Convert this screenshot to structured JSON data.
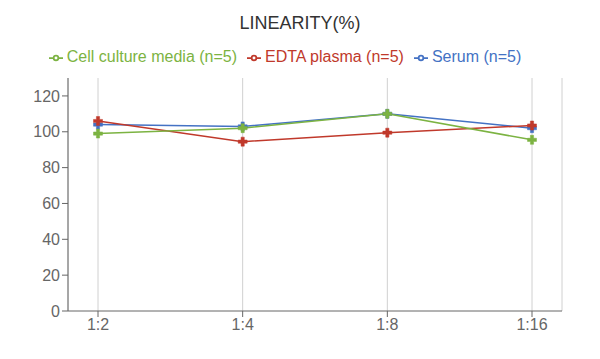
{
  "chart_data": {
    "type": "line",
    "title": "LINEARITY(%)",
    "categories": [
      "1:2",
      "1:4",
      "1:8",
      "1:16"
    ],
    "series": [
      {
        "name": "Serum (n=5)",
        "color": "#4472C4",
        "marker": "plus",
        "values": [
          104,
          103,
          110,
          102
        ]
      },
      {
        "name": "EDTA plasma (n=5)",
        "color": "#C0392B",
        "marker": "plus",
        "values": [
          106,
          94.5,
          99.5,
          103.5
        ]
      },
      {
        "name": "Cell culture media (n=5)",
        "color": "#7CB342",
        "marker": "plus",
        "values": [
          99,
          102,
          110,
          95.5
        ]
      }
    ],
    "ylim": [
      0,
      130
    ],
    "yticks": [
      0,
      20,
      40,
      60,
      80,
      100,
      120
    ],
    "grid": true,
    "legend": "top"
  }
}
